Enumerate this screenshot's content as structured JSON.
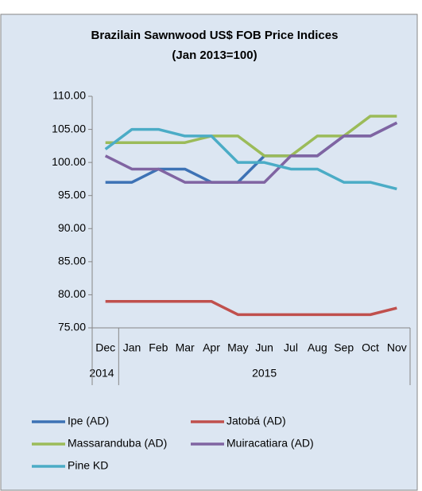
{
  "chart_data": {
    "type": "line",
    "title": "Brazilain Sawnwood US$ FOB Price Indices",
    "subtitle": "(Jan 2013=100)",
    "categories": [
      "Dec",
      "Jan",
      "Feb",
      "Mar",
      "Apr",
      "May",
      "Jun",
      "Jul",
      "Aug",
      "Sep",
      "Oct",
      "Nov"
    ],
    "category_groups": [
      {
        "label": "2014",
        "span": 1
      },
      {
        "label": "2015",
        "span": 11
      }
    ],
    "ylim": [
      75,
      110
    ],
    "yticks": [
      {
        "value": 75,
        "label": "75.00"
      },
      {
        "value": 80,
        "label": "80.00"
      },
      {
        "value": 85,
        "label": "85.00"
      },
      {
        "value": 90,
        "label": "90.00"
      },
      {
        "value": 95,
        "label": "95.00"
      },
      {
        "value": 100,
        "label": "100.00"
      },
      {
        "value": 105,
        "label": "105.00"
      },
      {
        "value": 110,
        "label": "110.00"
      }
    ],
    "series": [
      {
        "name": "Ipe (AD)",
        "color": "#3d72b5",
        "values": [
          97,
          97,
          99,
          99,
          97,
          97,
          101,
          101,
          101,
          104,
          104,
          106
        ]
      },
      {
        "name": "Jatobá (AD)",
        "color": "#c0504d",
        "values": [
          79,
          79,
          79,
          79,
          79,
          77,
          77,
          77,
          77,
          77,
          77,
          78
        ]
      },
      {
        "name": "Massaranduba (AD)",
        "color": "#9bbb59",
        "values": [
          103,
          103,
          103,
          103,
          104,
          104,
          101,
          101,
          104,
          104,
          107,
          107
        ]
      },
      {
        "name": "Muiracatiara (AD)",
        "color": "#8064a2",
        "values": [
          101,
          99,
          99,
          97,
          97,
          97,
          97,
          101,
          101,
          104,
          104,
          106
        ]
      },
      {
        "name": "Pine KD",
        "color": "#4bacc6",
        "values": [
          102,
          105,
          105,
          104,
          104,
          100,
          100,
          99,
          99,
          97,
          97,
          96
        ]
      }
    ],
    "legend": "bottom"
  }
}
